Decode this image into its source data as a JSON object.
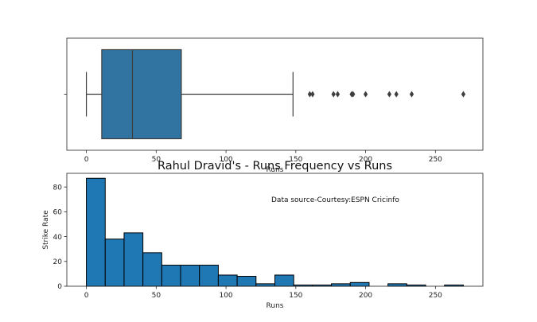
{
  "chart_data": [
    {
      "type": "box",
      "orientation": "horizontal",
      "xlabel": "Runs",
      "xlim": [
        -14,
        284
      ],
      "xticks": [
        0,
        50,
        100,
        150,
        200,
        250
      ],
      "box": {
        "whisker_low": 0,
        "q1": 11,
        "median": 33,
        "q3": 68,
        "whisker_high": 148,
        "outliers": [
          160,
          162,
          177,
          180,
          190,
          191,
          200,
          217,
          222,
          233,
          270
        ]
      },
      "color": "#3274a1"
    },
    {
      "type": "histogram",
      "title": "Rahul Dravid's - Runs Frequency vs Runs",
      "xlabel": "Runs",
      "ylabel": "Strike Rate",
      "annotation": "Data source-Courtesy:ESPN Cricinfo",
      "xlim": [
        -14,
        284
      ],
      "ylim": [
        0,
        91
      ],
      "xticks": [
        0,
        50,
        100,
        150,
        200,
        250
      ],
      "yticks": [
        0,
        20,
        40,
        60,
        80
      ],
      "bin_width": 13.5,
      "bin_start": 0,
      "values": [
        87,
        38,
        43,
        27,
        17,
        17,
        17,
        9,
        8,
        2,
        9,
        1,
        1,
        2,
        3,
        0,
        2,
        1,
        0,
        1
      ],
      "color": "#1f77b4"
    }
  ]
}
